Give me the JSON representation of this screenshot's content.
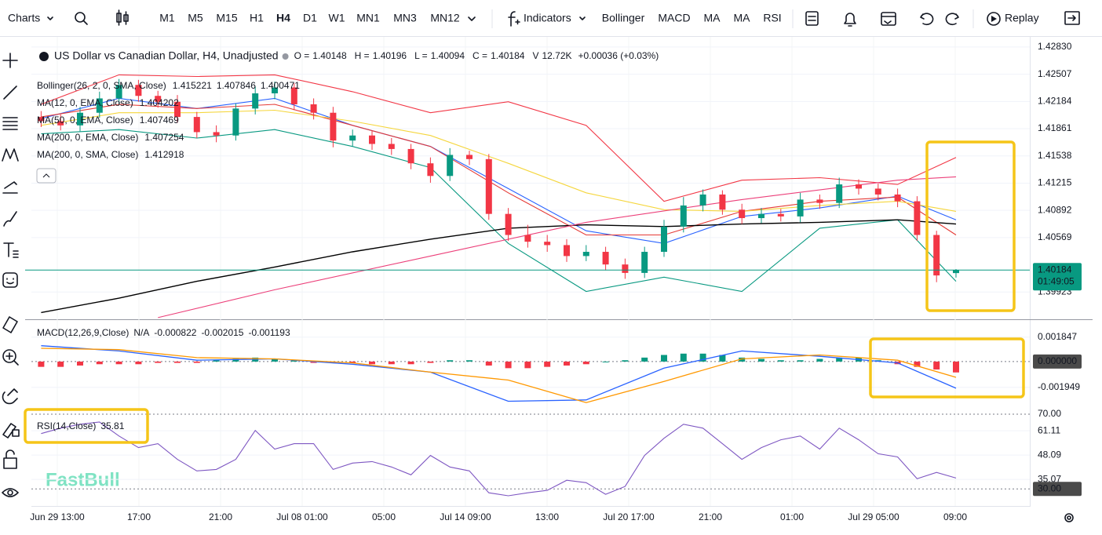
{
  "toolbar": {
    "charts": "Charts",
    "timeframes": [
      "M1",
      "M5",
      "M15",
      "H1",
      "H4",
      "D1",
      "W1",
      "MN1",
      "MN3",
      "MN12"
    ],
    "active_timeframe": "H4",
    "indicators_button": "Indicators",
    "indicator_buttons": [
      "Bollinger",
      "MACD",
      "MA",
      "MA",
      "RSI"
    ],
    "replay": "Replay"
  },
  "watermark": "FastBull",
  "time_axis": [
    "Jun 29 13:00",
    "17:00",
    "21:00",
    "Jul 08 01:00",
    "05:00",
    "Jul 14 09:00",
    "13:00",
    "Jul 20 17:00",
    "21:00",
    "01:00",
    "Jul 29 05:00",
    "09:00"
  ],
  "chart_data": [
    {
      "type": "candlestick",
      "symbol": "US Dollar vs Canadian Dollar, H4, Unadjusted",
      "ohlc_labels": [
        "O =",
        "H =",
        "L =",
        "C =",
        "V"
      ],
      "volume": "12.72K",
      "change": "+0.00036 (+0.03%)",
      "countdown": "01:49:05",
      "up_color": "#089981",
      "down_color": "#f23645",
      "open": [
        1.42,
        1.4195,
        1.419,
        1.4205,
        1.4222,
        1.4238,
        1.4225,
        1.4218,
        1.42,
        1.4182,
        1.4178,
        1.421,
        1.4228,
        1.4235,
        1.4215,
        1.4205,
        1.4172,
        1.4178,
        1.4168,
        1.4162,
        1.4145,
        1.413,
        1.4155,
        1.415,
        1.4085,
        1.406,
        1.4052,
        1.4048,
        1.4035,
        1.404,
        1.4025,
        1.4015,
        1.404,
        1.407,
        1.4095,
        1.4108,
        1.409,
        1.408,
        1.4085,
        1.4082,
        1.4102,
        1.4098,
        1.412,
        1.4115,
        1.4108,
        1.41,
        1.406,
        1.40148
      ],
      "high": [
        1.4207,
        1.4203,
        1.4212,
        1.423,
        1.4245,
        1.4244,
        1.4231,
        1.4226,
        1.4206,
        1.419,
        1.4216,
        1.4236,
        1.4242,
        1.424,
        1.4222,
        1.4212,
        1.4185,
        1.4184,
        1.4175,
        1.4168,
        1.4152,
        1.4163,
        1.416,
        1.4156,
        1.4092,
        1.4072,
        1.406,
        1.4055,
        1.4048,
        1.4046,
        1.4032,
        1.4046,
        1.4078,
        1.4105,
        1.4114,
        1.4113,
        1.4097,
        1.4092,
        1.4091,
        1.411,
        1.4108,
        1.4128,
        1.4126,
        1.4121,
        1.4115,
        1.4106,
        1.4065,
        1.40196
      ],
      "low": [
        1.4188,
        1.4184,
        1.4183,
        1.4199,
        1.4215,
        1.4218,
        1.4211,
        1.4193,
        1.4175,
        1.417,
        1.4172,
        1.4203,
        1.4221,
        1.4208,
        1.4197,
        1.4164,
        1.4165,
        1.4161,
        1.4155,
        1.4138,
        1.4122,
        1.4124,
        1.4143,
        1.4078,
        1.4053,
        1.4045,
        1.404,
        1.4028,
        1.4029,
        1.4018,
        1.4008,
        1.4009,
        1.4034,
        1.4063,
        1.4088,
        1.4084,
        1.4073,
        1.4074,
        1.4076,
        1.4075,
        1.4091,
        1.4092,
        1.4108,
        1.4101,
        1.4093,
        1.4053,
        1.4004,
        1.40094
      ],
      "close": [
        1.4195,
        1.419,
        1.4205,
        1.4222,
        1.4238,
        1.4225,
        1.4218,
        1.42,
        1.4182,
        1.4178,
        1.421,
        1.4228,
        1.4235,
        1.4215,
        1.4205,
        1.4172,
        1.4178,
        1.4168,
        1.4162,
        1.4145,
        1.413,
        1.4155,
        1.415,
        1.4085,
        1.406,
        1.4052,
        1.4048,
        1.4035,
        1.404,
        1.4025,
        1.4015,
        1.404,
        1.407,
        1.4095,
        1.4108,
        1.409,
        1.408,
        1.4085,
        1.4082,
        1.4102,
        1.4098,
        1.412,
        1.4115,
        1.4108,
        1.41,
        1.406,
        1.4012,
        1.40184
      ],
      "ylim": [
        1.396,
        1.4295
      ],
      "yticks": [
        {
          "value": 1.4283,
          "label": "1.42830"
        },
        1.42507,
        1.42184,
        1.41861,
        1.41538,
        1.41215,
        1.40892,
        1.40569,
        1.39923
      ],
      "indicators": [
        {
          "label": "Bollinger(26, 2, 0, SMA, Close)",
          "lines": [
            {
              "color": "#f23645",
              "reading": 1.415221,
              "x": [
                0,
                4,
                8,
                12,
                16,
                20,
                24,
                28,
                32,
                36,
                40,
                44,
                47
              ],
              "values": [
                1.4215,
                1.425,
                1.4248,
                1.425,
                1.423,
                1.4205,
                1.4218,
                1.419,
                1.41,
                1.4125,
                1.4128,
                1.412,
                1.4152
              ]
            },
            {
              "color": "#2962ff",
              "reading": 1.407846,
              "x": [
                0,
                4,
                8,
                12,
                16,
                20,
                24,
                28,
                32,
                36,
                40,
                44,
                47
              ],
              "values": [
                1.4198,
                1.4222,
                1.421,
                1.4222,
                1.419,
                1.4165,
                1.4115,
                1.4065,
                1.405,
                1.4082,
                1.4092,
                1.4106,
                1.4078
              ]
            },
            {
              "color": "#089981",
              "reading": 1.400471,
              "x": [
                0,
                4,
                8,
                12,
                16,
                20,
                24,
                28,
                32,
                36,
                40,
                44,
                47
              ],
              "values": [
                1.418,
                1.4185,
                1.4175,
                1.4185,
                1.4165,
                1.414,
                1.405,
                1.3993,
                1.401,
                1.3993,
                1.4068,
                1.4078,
                1.4005
              ]
            }
          ]
        },
        {
          "label": "MA(12, 0, EMA, Close)",
          "lines": [
            {
              "color": "#e53935",
              "reading": 1.404202,
              "x": [
                0,
                4,
                8,
                12,
                16,
                20,
                24,
                28,
                32,
                36,
                40,
                44,
                47
              ],
              "values": [
                1.42,
                1.4215,
                1.421,
                1.4215,
                1.419,
                1.4165,
                1.411,
                1.406,
                1.406,
                1.4088,
                1.41,
                1.4105,
                1.406
              ]
            }
          ]
        },
        {
          "label": "MA(50, 0, EMA, Close)",
          "lines": [
            {
              "color": "#f5d63d",
              "reading": 1.407469,
              "x": [
                0,
                4,
                8,
                12,
                16,
                20,
                24,
                28,
                32,
                36,
                40,
                44,
                47
              ],
              "values": [
                1.419,
                1.4205,
                1.4205,
                1.4208,
                1.4195,
                1.4178,
                1.4145,
                1.411,
                1.409,
                1.4088,
                1.4095,
                1.41,
                1.4088
              ]
            }
          ]
        },
        {
          "label": "MA(200, 0, EMA, Close)",
          "lines": [
            {
              "color": "#000000",
              "reading": 1.407254,
              "x": [
                0,
                4,
                8,
                12,
                16,
                20,
                24,
                28,
                32,
                36,
                40,
                44,
                47
              ],
              "values": [
                1.3968,
                1.3985,
                1.4005,
                1.4022,
                1.404,
                1.4055,
                1.4068,
                1.4072,
                1.407,
                1.4073,
                1.4075,
                1.4078,
                1.4073
              ]
            }
          ]
        },
        {
          "label": "MA(200, 0, SMA, Close)",
          "lines": [
            {
              "color": "#ec407a",
              "reading": 1.412918,
              "x": [
                6,
                12,
                20,
                28,
                36,
                44,
                47
              ],
              "values": [
                1.3962,
                1.3995,
                1.4035,
                1.4075,
                1.4102,
                1.4125,
                1.4129
              ]
            }
          ]
        }
      ]
    },
    {
      "type": "macd",
      "title": "MACD(12,26,9,Close)",
      "status": "N/A",
      "up_color": "#089981",
      "down_color": "#f23645",
      "histogram": {
        "values": [
          -0.0004,
          -0.0004,
          -0.0003,
          -0.0002,
          -0.0002,
          -0.0002,
          -0.0001,
          -0.0001,
          -0.0001,
          0.0001,
          0.0002,
          0.0003,
          0.0002,
          0.0001,
          -0.0001,
          -0.0001,
          -0.0001,
          -0.0002,
          -0.0002,
          -0.0002,
          -0.0001,
          0.0001,
          0.0001,
          -0.0003,
          -0.0005,
          -0.0005,
          -0.0004,
          -0.0003,
          -0.0002,
          0.0,
          0.0001,
          0.0003,
          0.0005,
          0.0006,
          0.0006,
          0.0005,
          0.0003,
          0.0002,
          0.0001,
          0.0001,
          0.0002,
          0.0003,
          0.0003,
          0.0001,
          -0.0002,
          -0.0004,
          -0.0006,
          -0.000822
        ]
      },
      "series": [
        {
          "color": "#2962ff",
          "x": [
            0,
            4,
            8,
            12,
            16,
            20,
            24,
            28,
            32,
            36,
            40,
            44,
            47
          ],
          "values": [
            0.0012,
            0.0008,
            0.0001,
            0.0002,
            -0.0002,
            -0.0008,
            -0.003,
            -0.0029,
            -0.0005,
            0.0008,
            0.0004,
            -0.0001,
            -0.002015
          ]
        },
        {
          "color": "#ff9800",
          "x": [
            0,
            4,
            8,
            12,
            16,
            20,
            24,
            28,
            32,
            36,
            40,
            44,
            47
          ],
          "values": [
            0.001,
            0.0009,
            0.0003,
            0.0002,
            -0.0001,
            -0.0008,
            -0.0014,
            -0.0031,
            -0.0015,
            0.0002,
            0.0005,
            0.0001,
            -0.001193
          ]
        }
      ],
      "ylim": [
        -0.0038,
        0.0029
      ],
      "yticks": [
        0.001847,
        {
          "value": 0,
          "label": "0.000000"
        },
        -0.001949
      ],
      "boxed_ticks": [
        1
      ],
      "dashed_ticks": [
        1
      ]
    },
    {
      "type": "rsi",
      "title": "RSI(14,Close)",
      "color": "#7e57c2",
      "values": [
        59.6,
        62.5,
        64.6,
        65.8,
        58.3,
        52.1,
        54.2,
        45.8,
        39.6,
        40.4,
        45.8,
        61.3,
        51.3,
        54.2,
        54.2,
        40.4,
        43.8,
        44.6,
        41.7,
        37.5,
        47.9,
        41.7,
        39.6,
        27.9,
        26.3,
        27.9,
        29.2,
        34.6,
        33.3,
        27.1,
        31.3,
        47.9,
        57.1,
        64.6,
        62.5,
        54.2,
        45.8,
        52.1,
        56.3,
        58.3,
        51.3,
        62.5,
        56.3,
        48.8,
        47.1,
        35.4,
        38.8,
        35.81
      ],
      "ylim": [
        22.1,
        70.4
      ],
      "yticks": [
        {
          "value": 70,
          "label": "70.00"
        },
        61.11,
        48.09,
        35.07,
        {
          "value": 30,
          "label": "30.00"
        }
      ],
      "boxed_ticks": [
        4
      ],
      "dashed_ticks": [
        0,
        4
      ]
    }
  ]
}
